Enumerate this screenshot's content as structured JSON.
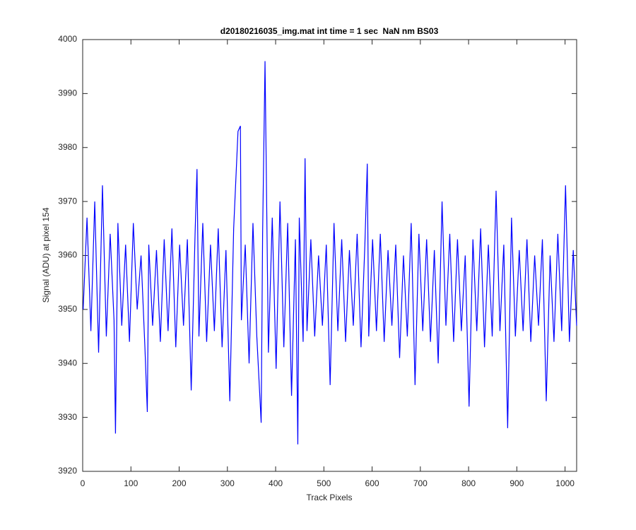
{
  "chart_data": {
    "type": "line",
    "title": "d20180216035_img.mat int time = 1 sec  NaN nm BS03",
    "x_label": "Track Pixels",
    "y_label": "Signal (ADU) at pixel 154",
    "x": [
      1,
      9,
      17,
      25,
      33,
      41,
      49,
      57,
      65,
      68,
      73,
      81,
      89,
      97,
      105,
      113,
      121,
      129,
      134,
      137,
      145,
      153,
      161,
      169,
      177,
      185,
      193,
      201,
      209,
      217,
      225,
      233,
      237,
      241,
      249,
      257,
      265,
      273,
      281,
      289,
      297,
      305,
      313,
      322,
      327,
      329,
      337,
      345,
      353,
      361,
      370,
      373,
      378,
      385,
      393,
      401,
      409,
      417,
      425,
      433,
      441,
      446,
      449,
      457,
      461,
      465,
      473,
      481,
      489,
      497,
      505,
      513,
      521,
      529,
      537,
      545,
      553,
      561,
      569,
      577,
      585,
      590,
      593,
      601,
      609,
      617,
      625,
      633,
      641,
      649,
      657,
      665,
      673,
      681,
      689,
      697,
      705,
      713,
      721,
      729,
      737,
      745,
      753,
      761,
      769,
      777,
      785,
      793,
      801,
      809,
      817,
      825,
      833,
      841,
      849,
      857,
      865,
      873,
      881,
      889,
      897,
      905,
      913,
      921,
      929,
      937,
      945,
      953,
      961,
      969,
      977,
      985,
      993,
      1001,
      1009,
      1017,
      1024
    ],
    "series": [
      {
        "color": "#0000ff",
        "values": [
          3950,
          3967,
          3946,
          3970,
          3942,
          3973,
          3945,
          3964,
          3948,
          3927,
          3966,
          3947,
          3962,
          3944,
          3966,
          3950,
          3960,
          3943,
          3931,
          3962,
          3947,
          3961,
          3944,
          3963,
          3946,
          3965,
          3943,
          3962,
          3947,
          3963,
          3935,
          3964,
          3976,
          3945,
          3966,
          3944,
          3962,
          3946,
          3965,
          3943,
          3961,
          3933,
          3965,
          3983,
          3984,
          3948,
          3962,
          3940,
          3966,
          3945,
          3929,
          3964,
          3996,
          3942,
          3967,
          3939,
          3970,
          3943,
          3966,
          3934,
          3963,
          3925,
          3967,
          3944,
          3978,
          3946,
          3963,
          3945,
          3960,
          3947,
          3962,
          3936,
          3966,
          3946,
          3963,
          3944,
          3961,
          3947,
          3964,
          3943,
          3962,
          3977,
          3945,
          3963,
          3946,
          3964,
          3944,
          3961,
          3947,
          3962,
          3941,
          3960,
          3945,
          3966,
          3936,
          3964,
          3946,
          3963,
          3944,
          3961,
          3940,
          3970,
          3947,
          3964,
          3944,
          3963,
          3946,
          3960,
          3932,
          3963,
          3946,
          3965,
          3943,
          3962,
          3945,
          3972,
          3946,
          3962,
          3928,
          3967,
          3945,
          3961,
          3946,
          3963,
          3944,
          3960,
          3947,
          3963,
          3933,
          3960,
          3944,
          3964,
          3946,
          3973,
          3944,
          3961,
          3947
        ]
      }
    ],
    "xlim": [
      0,
      1024
    ],
    "ylim": [
      3920,
      4000
    ],
    "xticks": [
      0,
      100,
      200,
      300,
      400,
      500,
      600,
      700,
      800,
      900,
      1000
    ],
    "yticks": [
      3920,
      3930,
      3940,
      3950,
      3960,
      3970,
      3980,
      3990,
      4000
    ]
  }
}
